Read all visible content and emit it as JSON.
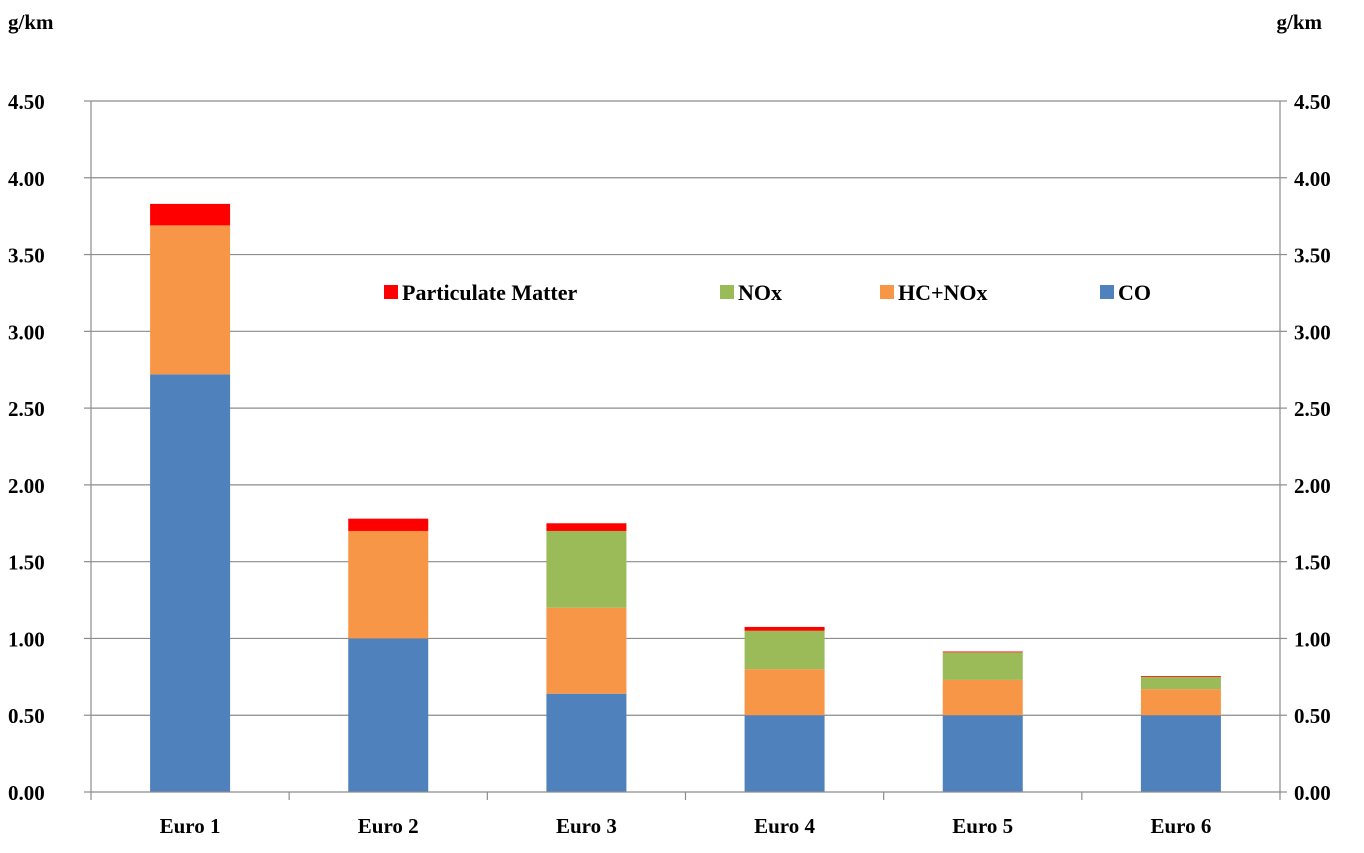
{
  "chart_data": {
    "type": "bar",
    "stacked": true,
    "categories": [
      "Euro 1",
      "Euro 2",
      "Euro 3",
      "Euro 4",
      "Euro 5",
      "Euro 6"
    ],
    "series": [
      {
        "name": "CO",
        "color": "#4F81BD",
        "values": [
          2.72,
          1.0,
          0.64,
          0.5,
          0.5,
          0.5
        ]
      },
      {
        "name": "HC+NOx",
        "color": "#F79646",
        "values": [
          0.97,
          0.7,
          0.56,
          0.3,
          0.23,
          0.17
        ]
      },
      {
        "name": "NOx",
        "color": "#9BBB59",
        "values": [
          0,
          0,
          0.5,
          0.25,
          0.18,
          0.08
        ]
      },
      {
        "name": "Particulate Matter",
        "color": "#FF0000",
        "values": [
          0.14,
          0.08,
          0.05,
          0.025,
          0.005,
          0.005
        ]
      }
    ],
    "legend_order": [
      "Particulate Matter",
      "NOx",
      "HC+NOx",
      "CO"
    ],
    "legend_position": "inside-top",
    "y_unit_left": "g/km",
    "y_unit_right": "g/km",
    "ylim": [
      0,
      4.5
    ],
    "yticks": [
      "0.00",
      "0.50",
      "1.00",
      "1.50",
      "2.00",
      "2.50",
      "3.00",
      "3.50",
      "4.00",
      "4.50"
    ],
    "grid": true,
    "secondary_y_axis": true
  }
}
